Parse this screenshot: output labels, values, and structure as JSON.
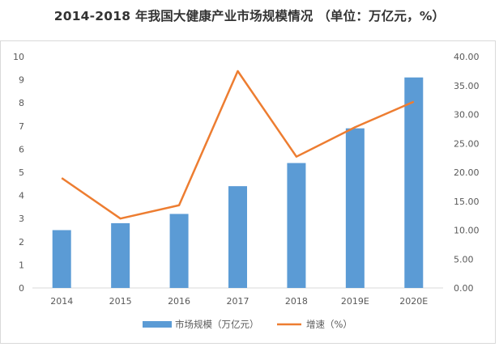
{
  "chart_data": {
    "type": "bar",
    "title": "2014-2018 年我国大健康产业市场规模情况 （单位：万亿元，%）",
    "categories": [
      "2014",
      "2015",
      "2016",
      "2017",
      "2018",
      "2019E",
      "2020E"
    ],
    "series": [
      {
        "name": "市场规模（万亿元）",
        "type": "bar",
        "axis": "left",
        "color": "#5b9bd5",
        "values": [
          2.5,
          2.8,
          3.2,
          4.4,
          5.4,
          6.9,
          9.1
        ]
      },
      {
        "name": "增速（%）",
        "type": "line",
        "axis": "right",
        "color": "#ed7d31",
        "values": [
          19.0,
          12.0,
          14.3,
          37.5,
          22.7,
          27.8,
          32.2
        ]
      }
    ],
    "y_left": {
      "min": 0,
      "max": 10,
      "step": 1,
      "ticks": [
        "0",
        "1",
        "2",
        "3",
        "4",
        "5",
        "6",
        "7",
        "8",
        "9",
        "10"
      ]
    },
    "y_right": {
      "min": 0,
      "max": 40,
      "step": 5,
      "ticks": [
        "0.00",
        "5.00",
        "10.00",
        "15.00",
        "20.00",
        "25.00",
        "30.00",
        "35.00",
        "40.00"
      ]
    },
    "grid": false,
    "legend": "bottom"
  }
}
